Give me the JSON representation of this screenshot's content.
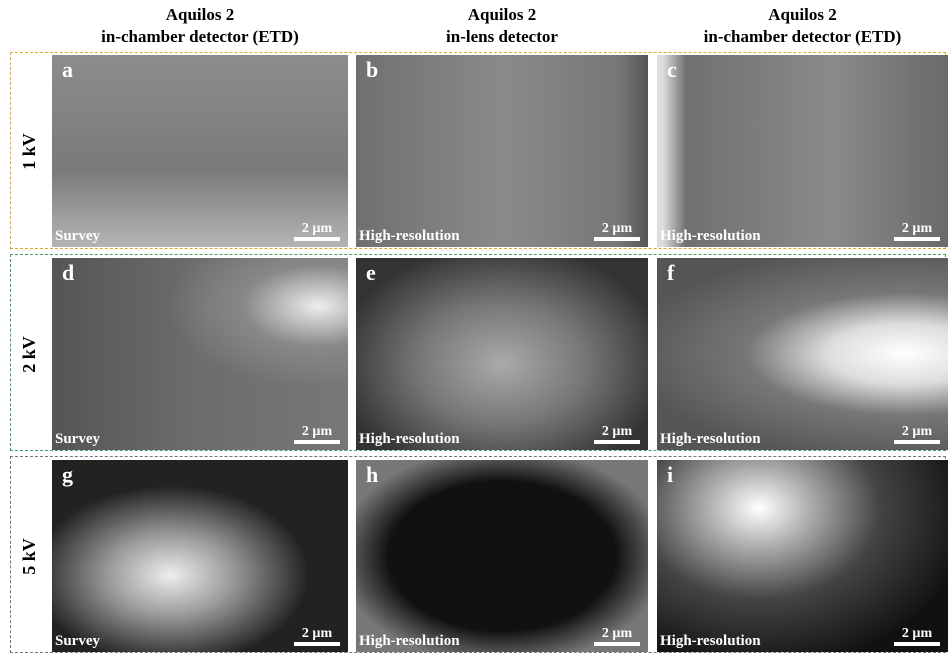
{
  "columns": [
    {
      "title": "Aquilos 2",
      "subtitle": "in-chamber detector (ETD)"
    },
    {
      "title": "Aquilos 2",
      "subtitle": "in-lens detector"
    },
    {
      "title": "Aquilos 2",
      "subtitle": "in-chamber detector (ETD)"
    }
  ],
  "rows": [
    {
      "label": "1 kV",
      "panels": [
        {
          "letter": "a",
          "mode": "Survey",
          "scale_bar": "2 µm"
        },
        {
          "letter": "b",
          "mode": "High-resolution",
          "scale_bar": "2 µm"
        },
        {
          "letter": "c",
          "mode": "High-resolution",
          "scale_bar": "2 µm"
        }
      ]
    },
    {
      "label": "2 kV",
      "panels": [
        {
          "letter": "d",
          "mode": "Survey",
          "scale_bar": "2 µm"
        },
        {
          "letter": "e",
          "mode": "High-resolution",
          "scale_bar": "2 µm"
        },
        {
          "letter": "f",
          "mode": "High-resolution",
          "scale_bar": "2 µm"
        }
      ]
    },
    {
      "label": "5 kV",
      "panels": [
        {
          "letter": "g",
          "mode": "Survey",
          "scale_bar": "2 µm"
        },
        {
          "letter": "h",
          "mode": "High-resolution",
          "scale_bar": "2 µm"
        },
        {
          "letter": "i",
          "mode": "High-resolution",
          "scale_bar": "2 µm"
        }
      ]
    }
  ]
}
